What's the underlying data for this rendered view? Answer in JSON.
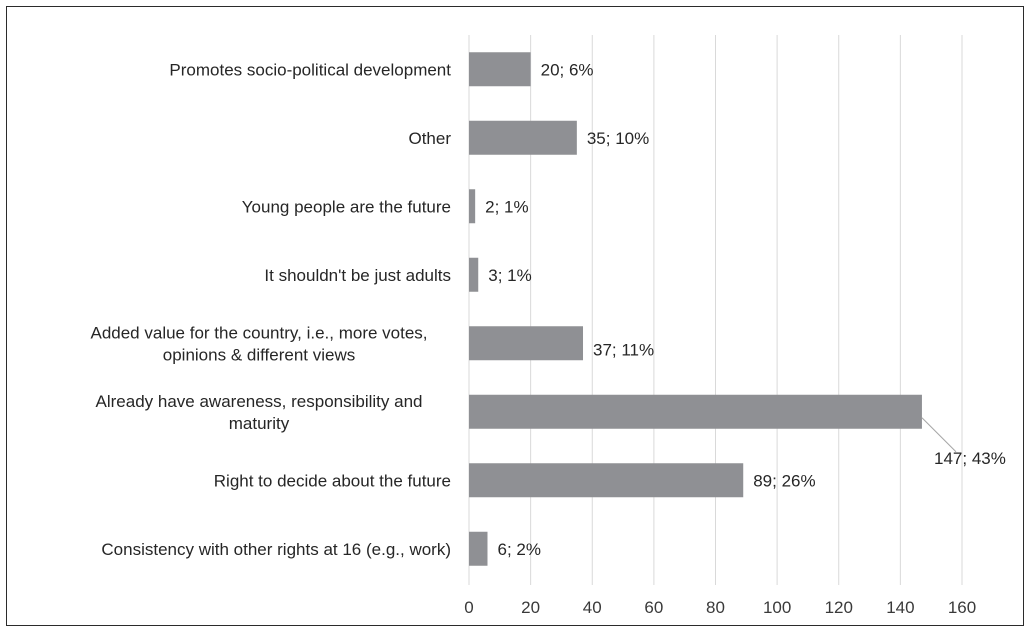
{
  "chart_data": {
    "type": "bar",
    "orientation": "horizontal",
    "categories": [
      "Promotes socio-political development",
      "Other",
      "Young people are the future",
      "It shouldn't be just adults",
      "Added value for the country, i.e., more votes, opinions & different views",
      "Already have awareness, responsibility and maturity",
      "Right to decide about the future",
      "Consistency with other rights at 16 (e.g., work)"
    ],
    "category_lines": [
      [
        "Promotes socio-political development"
      ],
      [
        "Other"
      ],
      [
        "Young people are the future"
      ],
      [
        "It shouldn't be just adults"
      ],
      [
        "Added value for the country, i.e., more votes,",
        "opinions & different views"
      ],
      [
        "Already have awareness, responsibility and",
        "maturity"
      ],
      [
        "Right to decide about the future"
      ],
      [
        "Consistency with other rights at 16 (e.g., work)"
      ]
    ],
    "values": [
      20,
      35,
      2,
      3,
      37,
      147,
      89,
      6
    ],
    "data_labels": [
      "20; 6%",
      "35; 10%",
      "2; 1%",
      "3; 1%",
      "37; 11%",
      "147; 43%",
      "89; 26%",
      "6; 2%"
    ],
    "xlim": [
      0,
      160
    ],
    "x_ticks": [
      "0",
      "20",
      "40",
      "60",
      "80",
      "100",
      "120",
      "140",
      "160"
    ],
    "grid": "vertical",
    "colors": {
      "bar": "#8f9094",
      "grid": "#d9d9d9",
      "text": "#262626"
    }
  }
}
